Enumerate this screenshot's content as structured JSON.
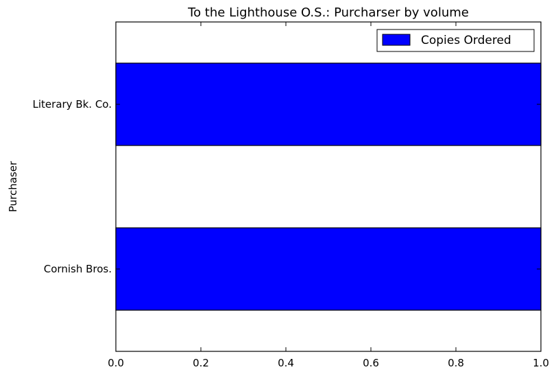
{
  "chart_data": {
    "type": "bar",
    "orientation": "horizontal",
    "title": "To the Lighthouse O.S.: Purcharser by volume",
    "xlabel": "",
    "ylabel": "Purchaser",
    "categories": [
      "Literary Bk. Co.",
      "Cornish Bros."
    ],
    "series": [
      {
        "name": "Copies Ordered",
        "values": [
          1,
          1
        ],
        "color": "#0000ff"
      }
    ],
    "xlim": [
      0,
      1
    ],
    "xticks": [
      "0.0",
      "0.2",
      "0.4",
      "0.6",
      "0.8",
      "1.0"
    ],
    "grid": false,
    "legend_position": "top-right"
  }
}
